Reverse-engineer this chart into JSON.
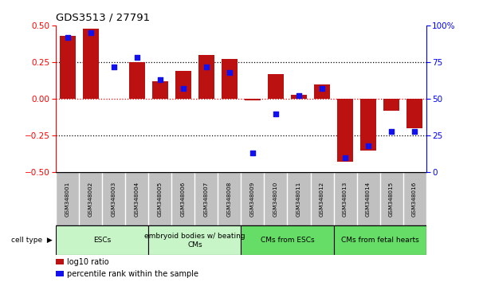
{
  "title": "GDS3513 / 27791",
  "samples": [
    "GSM348001",
    "GSM348002",
    "GSM348003",
    "GSM348004",
    "GSM348005",
    "GSM348006",
    "GSM348007",
    "GSM348008",
    "GSM348009",
    "GSM348010",
    "GSM348011",
    "GSM348012",
    "GSM348013",
    "GSM348014",
    "GSM348015",
    "GSM348016"
  ],
  "log10_ratio": [
    0.43,
    0.48,
    0.0,
    0.25,
    0.12,
    0.19,
    0.3,
    0.27,
    -0.01,
    0.17,
    0.03,
    0.1,
    -0.43,
    -0.35,
    -0.08,
    -0.2
  ],
  "percentile_rank": [
    92,
    95,
    72,
    78,
    63,
    57,
    72,
    68,
    13,
    40,
    52,
    57,
    10,
    18,
    28,
    28
  ],
  "cell_type_groups": [
    {
      "label": "ESCs",
      "start": 0,
      "end": 3,
      "color": "#C8F5C8"
    },
    {
      "label": "embryoid bodies w/ beating\nCMs",
      "start": 4,
      "end": 7,
      "color": "#C8F5C8"
    },
    {
      "label": "CMs from ESCs",
      "start": 8,
      "end": 11,
      "color": "#66DD66"
    },
    {
      "label": "CMs from fetal hearts",
      "start": 12,
      "end": 15,
      "color": "#66DD66"
    }
  ],
  "bar_color": "#BB1111",
  "dot_color": "#1111EE",
  "background_color": "#ffffff",
  "ylim_left": [
    -0.5,
    0.5
  ],
  "ylim_right": [
    0,
    100
  ],
  "yticks_left": [
    -0.5,
    -0.25,
    0.0,
    0.25,
    0.5
  ],
  "yticks_right": [
    0,
    25,
    50,
    75,
    100
  ],
  "hlines_dotted": [
    -0.25,
    0.25
  ],
  "hline_red_dotted": 0.0,
  "bar_width": 0.7,
  "sample_box_color": "#C0C0C0",
  "cell_type_label": "cell type",
  "legend_items": [
    {
      "color": "#BB1111",
      "label": "log10 ratio"
    },
    {
      "color": "#1111EE",
      "label": "percentile rank within the sample"
    }
  ]
}
